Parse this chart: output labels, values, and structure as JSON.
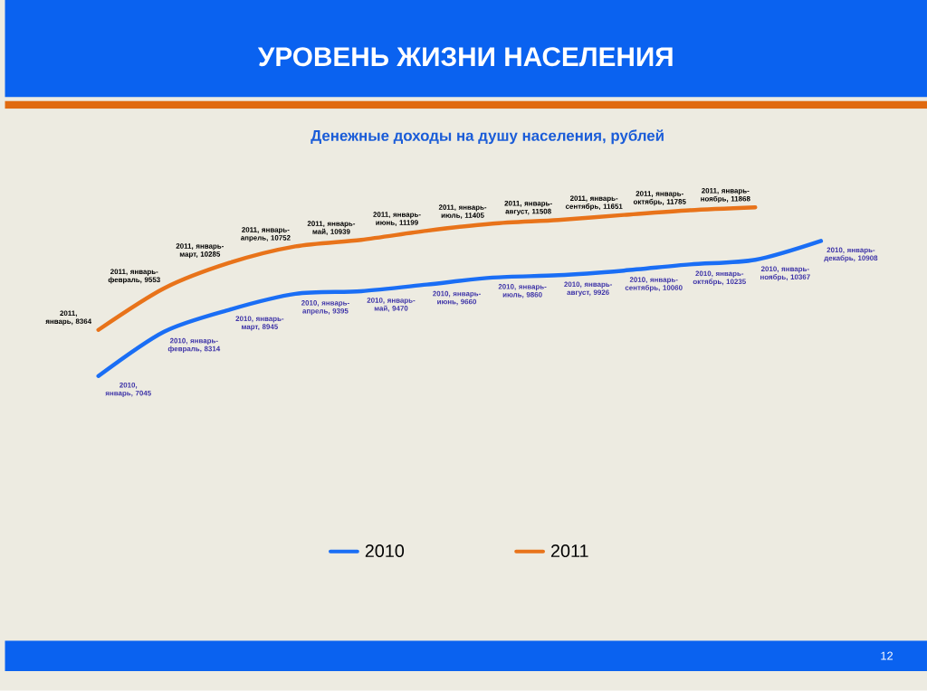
{
  "chart_data": {
    "type": "line",
    "title": "УРОВЕНЬ ЖИЗНИ НАСЕЛЕНИЯ",
    "subtitle": "Денежные доходы на душу населения, рублей",
    "categories": [
      null,
      null,
      null,
      null,
      null,
      null,
      null,
      null,
      null,
      null,
      null,
      null
    ],
    "tick_labels": false,
    "legend": "bottom",
    "marker": "none",
    "annotations": [
      "12"
    ],
    "series": [
      {
        "name": "2010",
        "color": "#1a6ef5",
        "values": [
          7045,
          8314,
          8945,
          9395,
          9470,
          9660,
          9860,
          9926,
          10060,
          10235,
          10367,
          10908
        ],
        "value_labels": [
          "2010, январь, 7045",
          "2010, январь-февраль, 8314",
          "2010, январь-март, 8945",
          "2010, январь-апрель, 9395",
          "2010, январь-май, 9470",
          "2010, январь-июнь, 9660",
          "2010, январь-июль, 9860",
          "2010, январь-август, 9926",
          "2010, январь-сентябрь, 10060",
          "2010, январь-октябрь, 10235",
          "2010, январь-ноябрь, 10367",
          "2010, январь-декабрь, 10908"
        ]
      },
      {
        "name": "2011",
        "color": "#e8731a",
        "values": [
          8364,
          9553,
          10285,
          10752,
          10939,
          11199,
          11405,
          11508,
          11651,
          11785,
          11868,
          null
        ],
        "value_labels": [
          "2011, январь, 8364",
          "2011, январь-февраль, 9553",
          "2011, январь-март, 10285",
          "2011, январь-апрель, 10752",
          "2011, январь-май, 10939",
          "2011, январь-июнь, 11199",
          "2011, январь-июль, 11405",
          "2011, январь-август, 11508",
          "2011, январь-сентябрь, 11651",
          "2011, январь-октябрь, 11785",
          "2011, январь-ноябрь, 11868",
          null
        ]
      }
    ]
  }
}
